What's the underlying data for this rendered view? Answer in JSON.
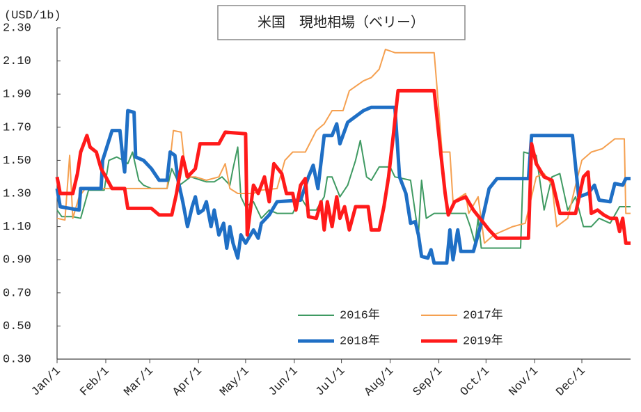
{
  "chart_data": {
    "type": "line",
    "title": "米国　現地相場（ベリー）",
    "y_label": "(USD/1b)",
    "xlim": [
      0,
      365
    ],
    "xticks": [
      {
        "value": 0,
        "label": "Jan/1"
      },
      {
        "value": 31,
        "label": "Feb/1"
      },
      {
        "value": 59,
        "label": "Mar/1"
      },
      {
        "value": 90,
        "label": "Apr/1"
      },
      {
        "value": 120,
        "label": "May/1"
      },
      {
        "value": 151,
        "label": "Jun/1"
      },
      {
        "value": 181,
        "label": "Jul/1"
      },
      {
        "value": 212,
        "label": "Aug/1"
      },
      {
        "value": 243,
        "label": "Sep/1"
      },
      {
        "value": 273,
        "label": "Oct/1"
      },
      {
        "value": 304,
        "label": "Nov/1"
      },
      {
        "value": 334,
        "label": "Dec/1"
      }
    ],
    "ylim": [
      0.3,
      2.3
    ],
    "yticks": [
      {
        "value": 0.3,
        "label": "0.30"
      },
      {
        "value": 0.5,
        "label": "0.50"
      },
      {
        "value": 0.7,
        "label": "0.70"
      },
      {
        "value": 0.9,
        "label": "0.90"
      },
      {
        "value": 1.1,
        "label": "1.10"
      },
      {
        "value": 1.3,
        "label": "1.30"
      },
      {
        "value": 1.5,
        "label": "1.50"
      },
      {
        "value": 1.7,
        "label": "1.70"
      },
      {
        "value": 1.9,
        "label": "1.90"
      },
      {
        "value": 2.1,
        "label": "2.10"
      },
      {
        "value": 2.3,
        "label": "2.30"
      }
    ],
    "grid": false,
    "legend": "bottom-center",
    "series": [
      {
        "name": "2016年",
        "color": "#3f9a62",
        "width": 2,
        "x": [
          0,
          3,
          10,
          15,
          20,
          30,
          33,
          38,
          42,
          45,
          48,
          52,
          55,
          60,
          70,
          73,
          78,
          85,
          95,
          100,
          105,
          110,
          112,
          115,
          117,
          120,
          125,
          130,
          135,
          140,
          150,
          155,
          160,
          165,
          170,
          172,
          175,
          180,
          185,
          190,
          193,
          197,
          200,
          205,
          212,
          215,
          225,
          230,
          232,
          235,
          240,
          260,
          263,
          266,
          268,
          270,
          295,
          297,
          305,
          310,
          315,
          320,
          325,
          330,
          335,
          340,
          345,
          352,
          358,
          365
        ],
        "values": [
          1.2,
          1.16,
          1.16,
          1.15,
          1.32,
          1.32,
          1.5,
          1.52,
          1.5,
          1.48,
          1.55,
          1.38,
          1.35,
          1.33,
          1.33,
          1.45,
          1.35,
          1.4,
          1.37,
          1.37,
          1.4,
          1.35,
          1.45,
          1.58,
          1.28,
          1.22,
          1.25,
          1.15,
          1.2,
          1.18,
          1.18,
          1.28,
          1.2,
          1.2,
          1.28,
          1.4,
          1.4,
          1.28,
          1.35,
          1.5,
          1.62,
          1.4,
          1.38,
          1.46,
          1.46,
          1.4,
          1.38,
          1.05,
          1.38,
          1.15,
          1.18,
          1.18,
          1.1,
          1.0,
          1.15,
          0.97,
          0.97,
          1.55,
          1.53,
          1.2,
          1.4,
          1.42,
          1.2,
          1.28,
          1.1,
          1.1,
          1.15,
          1.12,
          1.22,
          1.22
        ]
      },
      {
        "name": "2017年",
        "color": "#f5a050",
        "width": 2,
        "x": [
          0,
          5,
          8,
          10,
          14,
          18,
          70,
          74,
          79,
          82,
          88,
          95,
          103,
          107,
          110,
          115,
          125,
          130,
          140,
          145,
          150,
          158,
          165,
          170,
          175,
          182,
          186,
          195,
          200,
          205,
          209,
          215,
          240,
          243,
          245,
          250,
          252,
          260,
          262,
          268,
          272,
          278,
          290,
          298,
          305,
          310,
          315,
          318,
          325,
          330,
          334,
          340,
          347,
          355,
          361,
          362,
          365
        ],
        "values": [
          1.15,
          1.14,
          1.53,
          1.15,
          1.28,
          1.33,
          1.33,
          1.68,
          1.67,
          1.4,
          1.4,
          1.38,
          1.4,
          1.48,
          1.33,
          1.3,
          1.3,
          1.32,
          1.33,
          1.5,
          1.55,
          1.55,
          1.68,
          1.72,
          1.8,
          1.8,
          1.92,
          1.98,
          2.0,
          2.05,
          2.17,
          2.15,
          2.15,
          1.8,
          1.55,
          1.55,
          1.25,
          1.3,
          1.18,
          1.28,
          1.0,
          1.05,
          1.1,
          1.12,
          1.4,
          1.42,
          1.35,
          1.1,
          1.15,
          1.35,
          1.5,
          1.55,
          1.57,
          1.63,
          1.63,
          1.18,
          1.18
        ]
      },
      {
        "name": "2018年",
        "color": "#1f6fc5",
        "width": 5,
        "x": [
          0,
          2,
          14,
          15,
          28,
          29,
          35,
          40,
          42,
          43,
          45,
          49,
          50,
          55,
          60,
          65,
          70,
          72,
          75,
          77,
          80,
          83,
          86,
          88,
          90,
          93,
          95,
          98,
          100,
          103,
          106,
          108,
          110,
          112,
          115,
          117,
          120,
          125,
          128,
          130,
          135,
          140,
          155,
          160,
          163,
          166,
          170,
          175,
          178,
          180,
          185,
          195,
          200,
          215,
          218,
          222,
          225,
          228,
          230,
          232,
          236,
          238,
          240,
          248,
          250,
          252,
          255,
          257,
          265,
          270,
          272,
          275,
          280,
          300,
          302,
          328,
          332,
          338,
          342,
          345,
          352,
          355,
          360,
          362,
          365
        ],
        "values": [
          1.33,
          1.22,
          1.2,
          1.33,
          1.33,
          1.5,
          1.68,
          1.68,
          1.5,
          1.43,
          1.8,
          1.79,
          1.52,
          1.5,
          1.45,
          1.38,
          1.38,
          1.55,
          1.53,
          1.38,
          1.25,
          1.1,
          1.22,
          1.28,
          1.18,
          1.2,
          1.25,
          1.1,
          1.2,
          1.05,
          1.12,
          0.97,
          1.1,
          1.0,
          0.91,
          1.05,
          1.0,
          1.08,
          1.03,
          1.12,
          1.17,
          1.25,
          1.26,
          1.4,
          1.47,
          1.33,
          1.65,
          1.65,
          1.72,
          1.6,
          1.73,
          1.8,
          1.82,
          1.82,
          1.4,
          1.3,
          1.12,
          1.13,
          1.05,
          0.92,
          0.91,
          0.96,
          0.88,
          0.88,
          1.08,
          0.9,
          1.08,
          0.95,
          0.95,
          1.12,
          1.2,
          1.33,
          1.39,
          1.39,
          1.65,
          1.65,
          1.28,
          1.3,
          1.35,
          1.26,
          1.25,
          1.36,
          1.35,
          1.39,
          1.39
        ]
      },
      {
        "name": "2019年",
        "color": "#ff1a1a",
        "width": 5,
        "x": [
          0,
          2,
          10,
          13,
          15,
          17,
          19,
          21,
          25,
          28,
          31,
          35,
          43,
          45,
          60,
          65,
          73,
          76,
          80,
          83,
          88,
          91,
          103,
          107,
          120,
          121,
          125,
          128,
          132,
          135,
          138,
          143,
          146,
          150,
          152,
          155,
          158,
          160,
          165,
          168,
          170,
          172,
          175,
          178,
          180,
          183,
          186,
          190,
          198,
          200,
          205,
          208,
          211,
          214,
          217,
          240,
          243,
          247,
          249,
          253,
          260,
          265,
          275,
          280,
          300,
          302,
          305,
          310,
          315,
          320,
          330,
          335,
          338,
          340,
          344,
          348,
          352,
          356,
          358,
          360,
          362,
          365
        ],
        "values": [
          1.4,
          1.3,
          1.3,
          1.42,
          1.55,
          1.6,
          1.65,
          1.58,
          1.55,
          1.45,
          1.4,
          1.33,
          1.33,
          1.21,
          1.21,
          1.17,
          1.17,
          1.3,
          1.52,
          1.4,
          1.45,
          1.6,
          1.6,
          1.67,
          1.66,
          1.05,
          1.35,
          1.3,
          1.4,
          1.25,
          1.48,
          1.42,
          1.3,
          1.3,
          1.2,
          1.35,
          1.39,
          1.16,
          1.15,
          1.25,
          1.08,
          1.25,
          1.1,
          1.28,
          1.15,
          1.22,
          1.08,
          1.22,
          1.22,
          1.08,
          1.08,
          1.22,
          1.4,
          1.65,
          1.92,
          1.92,
          1.65,
          1.3,
          1.17,
          1.25,
          1.28,
          1.2,
          1.08,
          1.03,
          1.03,
          1.6,
          1.48,
          1.4,
          1.38,
          1.18,
          1.18,
          1.4,
          1.43,
          1.18,
          1.2,
          1.17,
          1.15,
          1.15,
          1.07,
          1.15,
          1.0,
          1.0
        ]
      }
    ]
  }
}
